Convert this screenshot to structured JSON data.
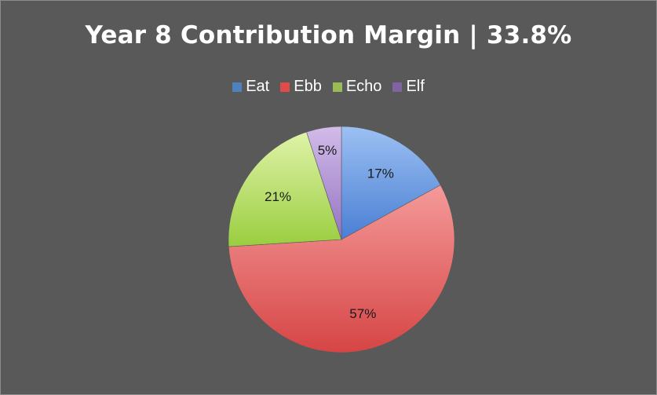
{
  "chart_data": {
    "type": "pie",
    "title": "Year 8 Contribution Margin | 33.8%",
    "legend_position": "top",
    "slices": [
      {
        "name": "Eat",
        "value": 17,
        "label": "17%",
        "color_light": "#9cc0f2",
        "color_dark": "#4a7fd4"
      },
      {
        "name": "Ebb",
        "value": 57,
        "label": "57%",
        "color_light": "#f59a9a",
        "color_dark": "#d64545"
      },
      {
        "name": "Echo",
        "value": 21,
        "label": "21%",
        "color_light": "#dff3a8",
        "color_dark": "#9acd3f"
      },
      {
        "name": "Elf",
        "value": 5,
        "label": "5%",
        "color_light": "#d2bce8",
        "color_dark": "#9473c4"
      }
    ]
  }
}
